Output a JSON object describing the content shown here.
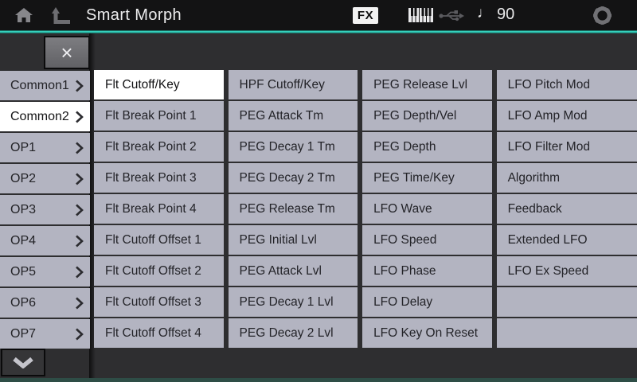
{
  "topbar": {
    "title": "Smart Morph",
    "fx_badge": "FX",
    "tempo_note": "♩",
    "tempo_value": "90"
  },
  "panel": {
    "close_label": "×"
  },
  "sidebar": {
    "items": [
      {
        "label": "Common1",
        "selected": false
      },
      {
        "label": "Common2",
        "selected": true
      },
      {
        "label": "OP1",
        "selected": false
      },
      {
        "label": "OP2",
        "selected": false
      },
      {
        "label": "OP3",
        "selected": false
      },
      {
        "label": "OP4",
        "selected": false
      },
      {
        "label": "OP5",
        "selected": false
      },
      {
        "label": "OP6",
        "selected": false
      },
      {
        "label": "OP7",
        "selected": false
      }
    ]
  },
  "grid": {
    "columns": [
      {
        "items": [
          {
            "label": "Flt Cutoff/Key",
            "selected": true
          },
          {
            "label": "Flt Break Point 1",
            "selected": false
          },
          {
            "label": "Flt Break Point 2",
            "selected": false
          },
          {
            "label": "Flt Break Point 3",
            "selected": false
          },
          {
            "label": "Flt Break Point 4",
            "selected": false
          },
          {
            "label": "Flt Cutoff Offset 1",
            "selected": false
          },
          {
            "label": "Flt Cutoff Offset 2",
            "selected": false
          },
          {
            "label": "Flt Cutoff Offset 3",
            "selected": false
          },
          {
            "label": "Flt Cutoff Offset 4",
            "selected": false
          }
        ]
      },
      {
        "items": [
          {
            "label": "HPF Cutoff/Key",
            "selected": false
          },
          {
            "label": "PEG Attack Tm",
            "selected": false
          },
          {
            "label": "PEG Decay 1 Tm",
            "selected": false
          },
          {
            "label": "PEG Decay 2 Tm",
            "selected": false
          },
          {
            "label": "PEG Release Tm",
            "selected": false
          },
          {
            "label": "PEG Initial Lvl",
            "selected": false
          },
          {
            "label": "PEG Attack Lvl",
            "selected": false
          },
          {
            "label": "PEG Decay 1 Lvl",
            "selected": false
          },
          {
            "label": "PEG Decay 2 Lvl",
            "selected": false
          }
        ]
      },
      {
        "items": [
          {
            "label": "PEG Release Lvl",
            "selected": false
          },
          {
            "label": "PEG Depth/Vel",
            "selected": false
          },
          {
            "label": "PEG Depth",
            "selected": false
          },
          {
            "label": "PEG Time/Key",
            "selected": false
          },
          {
            "label": "LFO Wave",
            "selected": false
          },
          {
            "label": "LFO Speed",
            "selected": false
          },
          {
            "label": "LFO Phase",
            "selected": false
          },
          {
            "label": "LFO Delay",
            "selected": false
          },
          {
            "label": "LFO Key On Reset",
            "selected": false
          }
        ]
      },
      {
        "items": [
          {
            "label": "LFO Pitch Mod",
            "selected": false
          },
          {
            "label": "LFO Amp Mod",
            "selected": false
          },
          {
            "label": "LFO Filter Mod",
            "selected": false
          },
          {
            "label": "Algorithm",
            "selected": false
          },
          {
            "label": "Feedback",
            "selected": false
          },
          {
            "label": "Extended LFO",
            "selected": false
          },
          {
            "label": "LFO Ex Speed",
            "selected": false
          },
          {
            "label": "",
            "selected": false
          },
          {
            "label": "",
            "selected": false
          }
        ]
      }
    ]
  },
  "colors": {
    "accent_teal": "#3adfca",
    "cell_bg": "#b3b4c1",
    "selected_bg": "#ffffff",
    "dark_bg": "#2e2e30",
    "topbar_bg": "#131314",
    "bottom_strip": "#2e4d46"
  }
}
